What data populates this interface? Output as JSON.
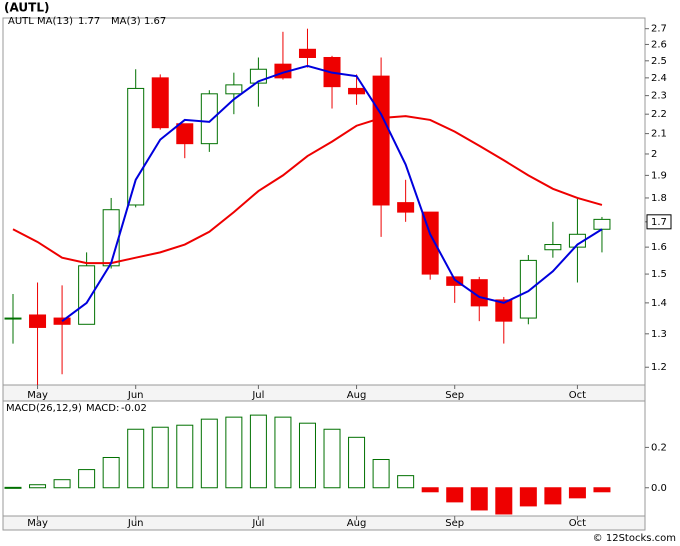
{
  "chart_data": [
    {
      "type": "candlestick",
      "title": "(AUTL)",
      "candle_name": "AUTL",
      "log_scale": true,
      "categories": [
        null,
        "May",
        null,
        null,
        null,
        "Jun",
        null,
        null,
        null,
        null,
        "Jul",
        null,
        null,
        null,
        "Aug",
        null,
        null,
        null,
        "Sep",
        null,
        null,
        null,
        null,
        "Oct",
        null
      ],
      "open": [
        1.35,
        1.36,
        1.35,
        1.33,
        1.53,
        1.77,
        2.4,
        2.15,
        2.05,
        2.31,
        2.37,
        2.48,
        2.57,
        2.52,
        2.34,
        2.41,
        1.78,
        1.74,
        1.49,
        1.48,
        1.41,
        1.35,
        1.59,
        1.6,
        1.67
      ],
      "high": [
        1.43,
        1.47,
        1.46,
        1.58,
        1.8,
        2.45,
        2.42,
        2.15,
        2.33,
        2.43,
        2.52,
        2.68,
        2.7,
        2.53,
        2.42,
        2.52,
        1.88,
        1.74,
        1.49,
        1.49,
        1.42,
        1.57,
        1.7,
        1.8,
        1.72
      ],
      "low": [
        1.27,
        1.15,
        1.18,
        1.33,
        1.52,
        1.76,
        2.12,
        1.98,
        2.01,
        2.2,
        2.24,
        2.39,
        2.46,
        2.23,
        2.25,
        1.64,
        1.7,
        1.48,
        1.4,
        1.34,
        1.27,
        1.33,
        1.56,
        1.47,
        1.58
      ],
      "close": [
        1.35,
        1.32,
        1.33,
        1.53,
        1.75,
        2.34,
        2.13,
        2.05,
        2.31,
        2.36,
        2.45,
        2.4,
        2.52,
        2.35,
        2.31,
        1.77,
        1.74,
        1.5,
        1.46,
        1.39,
        1.34,
        1.55,
        1.61,
        1.65,
        1.71
      ],
      "up_color": "#007000",
      "down_color": "#ee0000",
      "series": [
        {
          "name": "MA(13)",
          "color": "#ee0000",
          "values": [
            1.67,
            1.62,
            1.56,
            1.54,
            1.54,
            1.56,
            1.58,
            1.61,
            1.66,
            1.74,
            1.83,
            1.9,
            1.99,
            2.06,
            2.14,
            2.18,
            2.19,
            2.17,
            2.11,
            2.04,
            1.97,
            1.9,
            1.84,
            1.8,
            1.77
          ]
        },
        {
          "name": "MA(3)",
          "color": "#0000dd",
          "values": [
            null,
            null,
            1.34,
            1.4,
            1.54,
            1.88,
            2.07,
            2.17,
            2.16,
            2.28,
            2.38,
            2.43,
            2.47,
            2.43,
            2.41,
            2.2,
            1.95,
            1.65,
            1.48,
            1.42,
            1.4,
            1.44,
            1.51,
            1.61,
            1.67
          ]
        }
      ],
      "ylim": [
        1.15,
        2.77
      ],
      "yticks": [
        1.2,
        1.3,
        1.4,
        1.5,
        1.6,
        1.7,
        1.8,
        1.9,
        2.0,
        2.1,
        2.2,
        2.3,
        2.4,
        2.5,
        2.6,
        2.7
      ],
      "price_marker": {
        "value": 1.7,
        "label": "1.7"
      }
    },
    {
      "type": "bar",
      "title": "MACD(26,12,9)",
      "categories": [
        null,
        "May",
        null,
        null,
        null,
        "Jun",
        null,
        null,
        null,
        null,
        "Jul",
        null,
        null,
        null,
        "Aug",
        null,
        null,
        null,
        "Sep",
        null,
        null,
        null,
        null,
        "Oct",
        null
      ],
      "series": [
        {
          "name": "MACD:",
          "color": "#007000",
          "negative_color": "#ee0000",
          "values": [
            0.002,
            0.015,
            0.04,
            0.09,
            0.15,
            0.29,
            0.3,
            0.31,
            0.34,
            0.35,
            0.36,
            0.35,
            0.32,
            0.29,
            0.25,
            0.14,
            0.06,
            -0.02,
            -0.07,
            -0.11,
            -0.13,
            -0.09,
            -0.08,
            -0.05,
            -0.02
          ]
        }
      ],
      "ylim": [
        -0.14,
        0.43
      ],
      "yticks": [
        {
          "value": 0,
          "label": "0.0"
        },
        0.2
      ]
    }
  ],
  "watermark": "© 12Stocks.com"
}
